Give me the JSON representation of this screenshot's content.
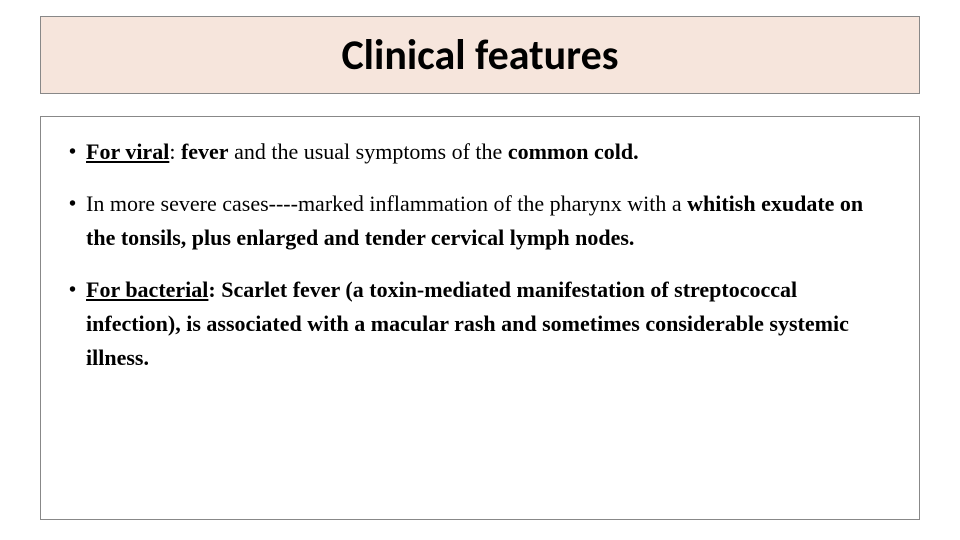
{
  "title": "Clinical features",
  "title_box": {
    "background_color": "#f6e5dc",
    "border_color": "#888888",
    "font_family": "Calibri",
    "font_size": 42,
    "font_weight": 700
  },
  "content_box": {
    "border_color": "#888888",
    "body_font_family": "Georgia",
    "body_font_size": 22,
    "line_height": 1.55
  },
  "bullets": [
    {
      "segments": [
        {
          "text": "For viral",
          "bold": true,
          "underline": true
        },
        {
          "text": ": ",
          "bold": false,
          "underline": false
        },
        {
          "text": "fever",
          "bold": true,
          "underline": false
        },
        {
          "text": " and the usual symptoms of the ",
          "bold": false,
          "underline": false
        },
        {
          "text": "common cold.",
          "bold": true,
          "underline": false
        }
      ]
    },
    {
      "segments": [
        {
          "text": "In more severe cases----marked inflammation of the pharynx with a ",
          "bold": false,
          "underline": false
        },
        {
          "text": "whitish exudate on the tonsils, plus enlarged and tender cervical lymph nodes.",
          "bold": true,
          "underline": false
        }
      ]
    },
    {
      "segments": [
        {
          "text": "For bacterial",
          "bold": true,
          "underline": true
        },
        {
          "text": ": Scarlet fever (a toxin-mediated manifestation of streptococcal infection), is associated with a macular rash and sometimes considerable systemic illness.",
          "bold": true,
          "underline": false
        }
      ]
    }
  ],
  "bullet_marker": "•"
}
